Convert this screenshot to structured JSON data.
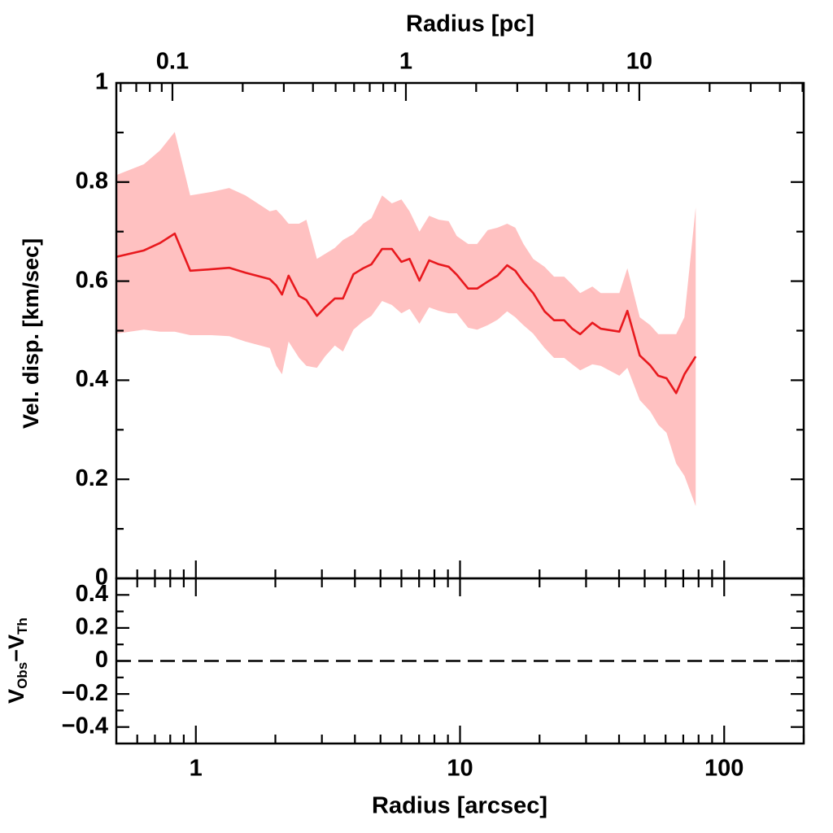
{
  "chart_data": [
    {
      "type": "line",
      "x2label": "Radius [pc]",
      "ylabel": "Vel. disp. [km/sec]",
      "x2lim": [
        0.0575,
        50.6
      ],
      "x2ticks": [
        0.1,
        1,
        10
      ],
      "x2minorticks": [
        0.06,
        0.07,
        0.08,
        0.09,
        0.2,
        0.3,
        0.4,
        0.5,
        0.6,
        0.7,
        0.8,
        0.9,
        2,
        3,
        4,
        5,
        6,
        7,
        8,
        9,
        20,
        30,
        40,
        50
      ],
      "ylim": [
        0,
        1
      ],
      "yticks": [
        0,
        0.2,
        0.4,
        0.6,
        0.8,
        1
      ],
      "yminorticks": [
        0.1,
        0.3,
        0.5,
        0.7,
        0.9
      ],
      "color": "#e8191e",
      "band_color": "#ffc1c1",
      "x": [
        0.5,
        0.636,
        0.732,
        0.832,
        0.952,
        1.144,
        1.337,
        1.541,
        1.905,
        2.017,
        2.119,
        2.244,
        2.459,
        2.62,
        2.873,
        3.084,
        3.358,
        3.605,
        3.95,
        4.3,
        4.62,
        5.07,
        5.52,
        6.0,
        6.44,
        7.02,
        7.64,
        8.32,
        9.06,
        9.72,
        10.73,
        11.61,
        12.73,
        13.86,
        15.08,
        16.19,
        17.38,
        18.92,
        20.9,
        22.7,
        24.8,
        26.6,
        28.5,
        31.7,
        34.1,
        40.1,
        43.0,
        47.9,
        52.5,
        56.3,
        60.5,
        65.8,
        70.7,
        78.0
      ],
      "values": [
        0.649,
        0.662,
        0.677,
        0.696,
        0.621,
        0.624,
        0.627,
        0.617,
        0.604,
        0.591,
        0.573,
        0.611,
        0.57,
        0.562,
        0.53,
        0.547,
        0.565,
        0.565,
        0.614,
        0.626,
        0.634,
        0.665,
        0.665,
        0.639,
        0.645,
        0.601,
        0.642,
        0.634,
        0.629,
        0.613,
        0.585,
        0.585,
        0.599,
        0.611,
        0.632,
        0.621,
        0.598,
        0.576,
        0.539,
        0.521,
        0.521,
        0.504,
        0.493,
        0.516,
        0.504,
        0.498,
        0.54,
        0.45,
        0.43,
        0.409,
        0.404,
        0.374,
        0.412,
        0.448
      ],
      "upper": [
        0.814,
        0.836,
        0.864,
        0.901,
        0.773,
        0.78,
        0.788,
        0.773,
        0.741,
        0.744,
        0.732,
        0.716,
        0.716,
        0.724,
        0.645,
        0.655,
        0.667,
        0.683,
        0.695,
        0.716,
        0.727,
        0.773,
        0.757,
        0.765,
        0.741,
        0.7,
        0.732,
        0.724,
        0.721,
        0.691,
        0.675,
        0.675,
        0.703,
        0.708,
        0.716,
        0.708,
        0.675,
        0.645,
        0.629,
        0.609,
        0.609,
        0.593,
        0.576,
        0.589,
        0.576,
        0.576,
        0.626,
        0.527,
        0.511,
        0.493,
        0.493,
        0.493,
        0.527,
        0.749
      ],
      "lower": [
        0.494,
        0.502,
        0.498,
        0.498,
        0.491,
        0.491,
        0.489,
        0.478,
        0.465,
        0.429,
        0.412,
        0.478,
        0.445,
        0.429,
        0.425,
        0.448,
        0.47,
        0.458,
        0.502,
        0.519,
        0.53,
        0.56,
        0.552,
        0.535,
        0.544,
        0.514,
        0.547,
        0.54,
        0.535,
        0.535,
        0.506,
        0.502,
        0.511,
        0.522,
        0.539,
        0.527,
        0.511,
        0.494,
        0.465,
        0.445,
        0.445,
        0.432,
        0.42,
        0.432,
        0.429,
        0.409,
        0.425,
        0.36,
        0.337,
        0.31,
        0.294,
        0.232,
        0.207,
        0.146
      ]
    },
    {
      "type": "line",
      "xlabel": "Radius [arcsec]",
      "ylabel": [
        "V",
        "Obs",
        "−V",
        "Th"
      ],
      "xlim": [
        0.5,
        200
      ],
      "xticks": [
        1,
        10,
        100
      ],
      "xminorticks": [
        0.6,
        0.7,
        0.8,
        0.9,
        2,
        3,
        4,
        5,
        6,
        7,
        8,
        9,
        20,
        30,
        40,
        50,
        60,
        70,
        80,
        90,
        200
      ],
      "ylim": [
        -0.5,
        0.5
      ],
      "yticks": [
        {
          "value": -0.4,
          "label": "−0.4"
        },
        {
          "value": -0.2,
          "label": "−0.2"
        },
        0,
        0.2,
        0.4
      ],
      "yminorticks": [
        -0.3,
        -0.1,
        0.1,
        0.3
      ],
      "hline": 0
    }
  ]
}
